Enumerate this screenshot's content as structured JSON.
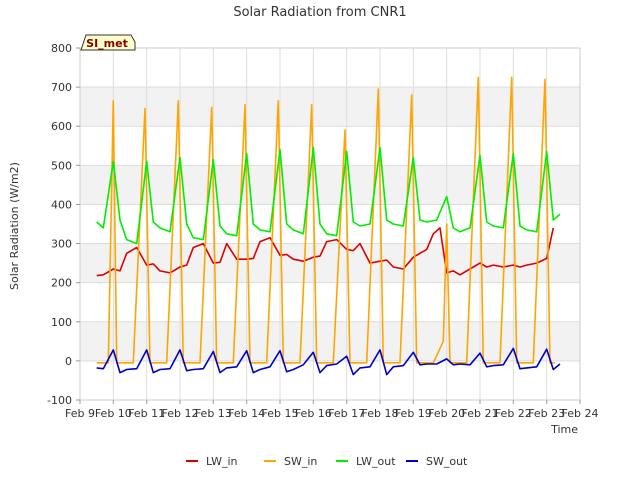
{
  "chart_data": {
    "type": "line",
    "title": "Solar Radiation from CNR1",
    "xlabel": "Time",
    "ylabel": "Solar Radiation (W/m2)",
    "badge": "SI_met",
    "xlim": [
      9,
      24
    ],
    "ylim": [
      -100,
      800
    ],
    "x_ticks": [
      {
        "value": 9,
        "label": "Feb 9"
      },
      {
        "value": 10,
        "label": "Feb 10"
      },
      {
        "value": 11,
        "label": "Feb 11"
      },
      {
        "value": 12,
        "label": "Feb 12"
      },
      {
        "value": 13,
        "label": "Feb 13"
      },
      {
        "value": 14,
        "label": "Feb 14"
      },
      {
        "value": 15,
        "label": "Feb 15"
      },
      {
        "value": 16,
        "label": "Feb 16"
      },
      {
        "value": 17,
        "label": "Feb 17"
      },
      {
        "value": 18,
        "label": "Feb 18"
      },
      {
        "value": 19,
        "label": "Feb 19"
      },
      {
        "value": 20,
        "label": "Feb 20"
      },
      {
        "value": 21,
        "label": "Feb 21"
      },
      {
        "value": 22,
        "label": "Feb 22"
      },
      {
        "value": 23,
        "label": "Feb 23"
      },
      {
        "value": 24,
        "label": "Feb 24"
      }
    ],
    "y_ticks": [
      -100,
      0,
      100,
      200,
      300,
      400,
      500,
      600,
      700,
      800
    ],
    "grid": true,
    "legend_position": "bottom",
    "series": [
      {
        "name": "LW_in",
        "color": "#dd0000",
        "x": [
          9.5,
          9.7,
          10.0,
          10.2,
          10.4,
          10.7,
          11.0,
          11.2,
          11.4,
          11.7,
          12.0,
          12.2,
          12.4,
          12.7,
          13.0,
          13.2,
          13.4,
          13.7,
          14.0,
          14.2,
          14.4,
          14.7,
          15.0,
          15.2,
          15.4,
          15.7,
          16.0,
          16.2,
          16.4,
          16.7,
          17.0,
          17.2,
          17.4,
          17.7,
          18.0,
          18.2,
          18.4,
          18.7,
          19.0,
          19.2,
          19.4,
          19.6,
          19.8,
          20.0,
          20.2,
          20.4,
          20.7,
          21.0,
          21.2,
          21.4,
          21.7,
          22.0,
          22.2,
          22.4,
          22.7,
          23.0,
          23.2
        ],
        "values": [
          218,
          220,
          235,
          230,
          275,
          290,
          245,
          248,
          230,
          225,
          240,
          245,
          290,
          300,
          250,
          252,
          300,
          260,
          260,
          262,
          305,
          315,
          270,
          272,
          260,
          255,
          265,
          268,
          305,
          310,
          285,
          282,
          300,
          250,
          255,
          258,
          240,
          235,
          265,
          275,
          285,
          325,
          340,
          225,
          230,
          220,
          235,
          250,
          240,
          245,
          240,
          245,
          240,
          245,
          250,
          262,
          340
        ]
      },
      {
        "name": "SW_in",
        "color": "#ffa500",
        "x": [
          9.5,
          9.85,
          10.0,
          10.1,
          10.25,
          10.6,
          10.95,
          11.1,
          11.25,
          11.6,
          11.95,
          12.1,
          12.25,
          12.6,
          12.95,
          13.1,
          13.25,
          13.6,
          13.95,
          14.1,
          14.25,
          14.6,
          14.95,
          15.1,
          15.25,
          15.6,
          15.95,
          16.1,
          16.25,
          16.6,
          16.95,
          17.1,
          17.25,
          17.6,
          17.95,
          18.1,
          18.25,
          18.6,
          18.95,
          19.1,
          19.25,
          19.6,
          19.9,
          20.0,
          20.1,
          20.25,
          20.6,
          20.95,
          21.1,
          21.25,
          21.6,
          21.95,
          22.1,
          22.25,
          22.6,
          22.95,
          23.1,
          23.25
        ],
        "values": [
          -5,
          -5,
          665,
          -5,
          -5,
          -5,
          645,
          -5,
          -5,
          -5,
          665,
          -5,
          -5,
          -5,
          648,
          -5,
          -5,
          -5,
          655,
          -5,
          -5,
          -5,
          665,
          -5,
          -5,
          -5,
          655,
          -5,
          -5,
          -5,
          590,
          -5,
          -5,
          -5,
          695,
          -5,
          -5,
          -5,
          680,
          -5,
          -5,
          -5,
          50,
          350,
          -5,
          -5,
          -5,
          725,
          -5,
          -5,
          -5,
          725,
          -5,
          -5,
          -5,
          720,
          -5,
          -5
        ]
      },
      {
        "name": "LW_out",
        "color": "#00ee00",
        "x": [
          9.5,
          9.7,
          10.0,
          10.2,
          10.4,
          10.7,
          11.0,
          11.2,
          11.4,
          11.7,
          12.0,
          12.2,
          12.4,
          12.7,
          13.0,
          13.2,
          13.4,
          13.7,
          14.0,
          14.2,
          14.4,
          14.7,
          15.0,
          15.2,
          15.4,
          15.7,
          16.0,
          16.2,
          16.4,
          16.7,
          17.0,
          17.2,
          17.4,
          17.7,
          18.0,
          18.2,
          18.4,
          18.7,
          19.0,
          19.2,
          19.4,
          19.7,
          20.0,
          20.2,
          20.4,
          20.7,
          21.0,
          21.2,
          21.4,
          21.7,
          22.0,
          22.2,
          22.4,
          22.7,
          23.0,
          23.2,
          23.4
        ],
        "values": [
          355,
          340,
          510,
          360,
          310,
          300,
          510,
          355,
          340,
          330,
          520,
          350,
          315,
          310,
          515,
          345,
          325,
          320,
          530,
          350,
          335,
          330,
          540,
          350,
          335,
          325,
          545,
          350,
          325,
          320,
          535,
          355,
          345,
          350,
          545,
          360,
          350,
          345,
          520,
          360,
          355,
          360,
          420,
          340,
          330,
          340,
          525,
          355,
          345,
          340,
          530,
          345,
          335,
          330,
          535,
          360,
          375
        ]
      },
      {
        "name": "SW_out",
        "color": "#0000cc",
        "x": [
          9.5,
          9.7,
          10.0,
          10.2,
          10.4,
          10.7,
          11.0,
          11.2,
          11.4,
          11.7,
          12.0,
          12.2,
          12.4,
          12.7,
          13.0,
          13.2,
          13.4,
          13.7,
          14.0,
          14.2,
          14.4,
          14.7,
          15.0,
          15.2,
          15.4,
          15.7,
          16.0,
          16.2,
          16.4,
          16.7,
          17.0,
          17.2,
          17.4,
          17.7,
          18.0,
          18.2,
          18.4,
          18.7,
          19.0,
          19.2,
          19.4,
          19.7,
          20.0,
          20.2,
          20.4,
          20.7,
          21.0,
          21.2,
          21.4,
          21.7,
          22.0,
          22.2,
          22.4,
          22.7,
          23.0,
          23.2,
          23.4
        ],
        "values": [
          -18,
          -20,
          28,
          -30,
          -22,
          -20,
          28,
          -30,
          -22,
          -20,
          28,
          -25,
          -22,
          -20,
          24,
          -30,
          -18,
          -15,
          26,
          -30,
          -22,
          -15,
          26,
          -28,
          -22,
          -10,
          22,
          -30,
          -12,
          -8,
          12,
          -35,
          -18,
          -15,
          28,
          -35,
          -15,
          -12,
          22,
          -10,
          -8,
          -8,
          5,
          -10,
          -8,
          -10,
          20,
          -15,
          -12,
          -10,
          32,
          -20,
          -18,
          -15,
          30,
          -22,
          -8
        ]
      }
    ]
  }
}
